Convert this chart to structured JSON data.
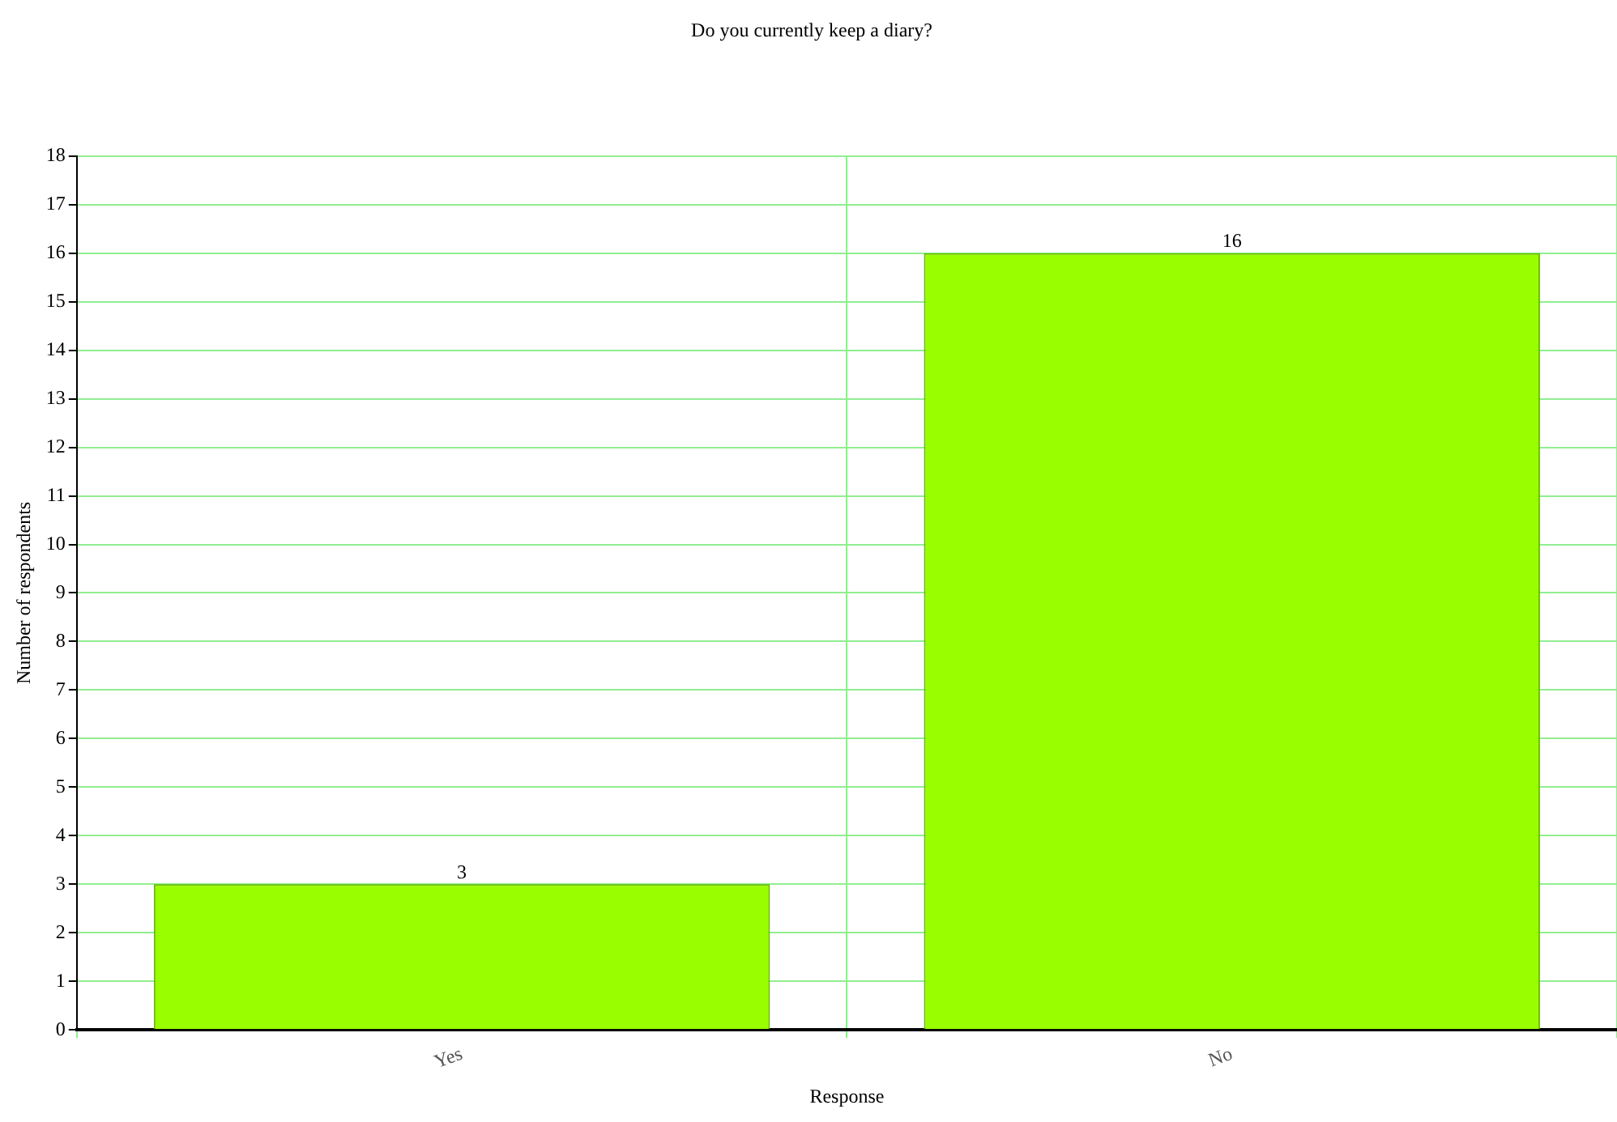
{
  "chart_data": {
    "type": "bar",
    "title": "Do you currently keep a diary?",
    "xlabel": "Response",
    "ylabel": "Number of respondents",
    "categories": [
      "Yes",
      "No"
    ],
    "values": [
      3,
      16
    ],
    "color": "#99ff00",
    "ylim": [
      0,
      18
    ],
    "yticks": [
      0,
      1,
      2,
      3,
      4,
      5,
      6,
      7,
      8,
      9,
      10,
      11,
      12,
      13,
      14,
      15,
      16,
      17,
      18
    ],
    "grid": true,
    "data_labels": true
  }
}
